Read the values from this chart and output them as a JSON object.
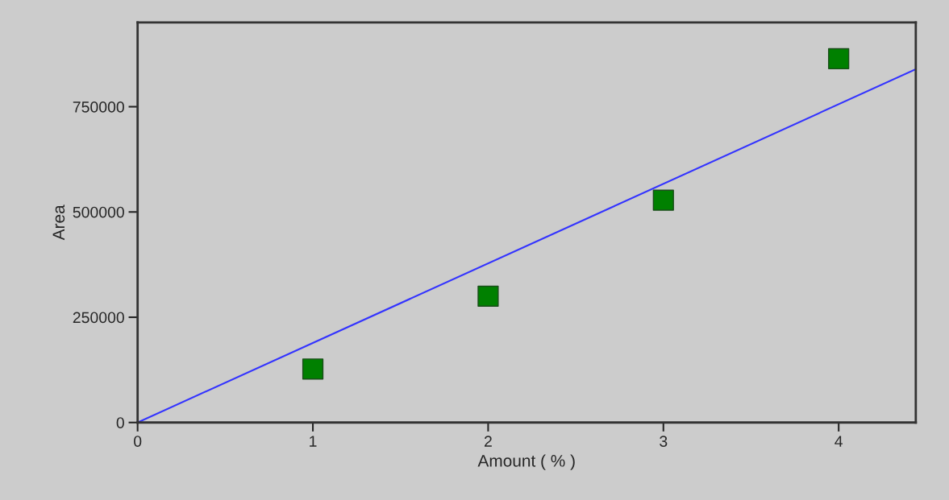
{
  "chart_data": {
    "type": "scatter",
    "xlabel": "Amount ( % )",
    "ylabel": "Area",
    "series": [
      {
        "color": "#008000",
        "x": [
          1,
          2,
          3,
          4
        ],
        "values": [
          127000,
          300000,
          528000,
          864000
        ],
        "marker": "square"
      },
      {
        "type": "line",
        "color": "#3333ff",
        "x": [
          0,
          4.44
        ],
        "values": [
          0,
          839000
        ],
        "marker": "none",
        "line_style": "solid"
      }
    ],
    "xlim": [
      0,
      4.44
    ],
    "xticks": [
      0,
      1,
      2,
      3,
      4
    ],
    "ylim": [
      0,
      950000
    ],
    "yticks": [
      0,
      250000,
      500000,
      750000
    ],
    "legend": false
  }
}
